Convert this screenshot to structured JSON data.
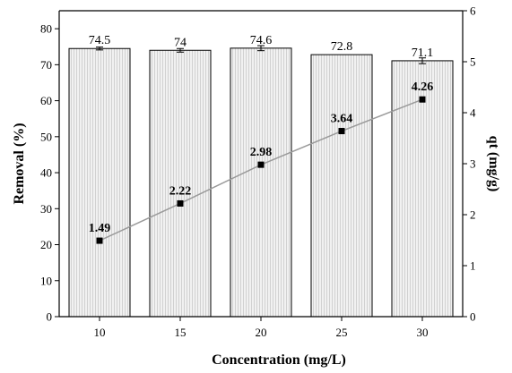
{
  "chart_data": {
    "type": "bar",
    "categories": [
      "10",
      "15",
      "20",
      "25",
      "30"
    ],
    "xlabel": "Concentration (mg/L)",
    "ylabel": "Removal (%)",
    "y2label": "qt (mg/g)",
    "ylim": [
      0,
      85
    ],
    "y2lim": [
      0,
      6
    ],
    "yticks": [
      "0",
      "10",
      "20",
      "30",
      "40",
      "50",
      "60",
      "70",
      "80"
    ],
    "y2ticks": [
      "0",
      "1",
      "2",
      "3",
      "4",
      "5",
      "6"
    ],
    "bar_labels": [
      "74.5",
      "74",
      "74.6",
      "72.8",
      "71.1"
    ],
    "point_labels": [
      "1.49",
      "2.22",
      "2.98",
      "3.64",
      "4.26"
    ],
    "series": [
      {
        "values": [
          74.5,
          74,
          74.6,
          72.8,
          71.1
        ],
        "axis": "left",
        "kind": "bar",
        "error": [
          0.4,
          0.5,
          0.7,
          0.0,
          0.8
        ]
      },
      {
        "values": [
          1.49,
          2.22,
          2.98,
          3.64,
          4.26
        ],
        "axis": "right",
        "kind": "line-marker"
      }
    ],
    "grid": false,
    "colors": {
      "bar_fill": "#e9e9e9",
      "line": "#9a9a9a",
      "marker": "#000000"
    }
  }
}
